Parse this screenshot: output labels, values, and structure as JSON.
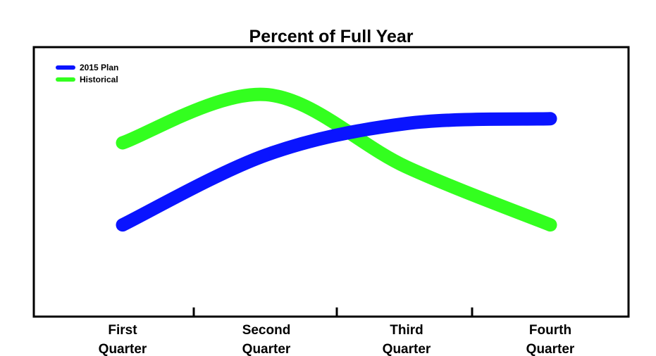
{
  "chart_data": {
    "type": "line",
    "title": "Percent of Full Year",
    "xlabel": "",
    "ylabel": "",
    "categories": [
      [
        "First",
        "Quarter"
      ],
      [
        "Second",
        "Quarter"
      ],
      [
        "Third",
        "Quarter"
      ],
      [
        "Fourth",
        "Quarter"
      ]
    ],
    "series": [
      {
        "name": "2015 Plan",
        "color": "#0a14ff",
        "values": [
          0.38,
          0.67,
          0.8,
          0.82
        ]
      },
      {
        "name": "Historical",
        "color": "#33ff1f",
        "values": [
          0.72,
          0.92,
          0.62,
          0.38
        ]
      }
    ],
    "ylim": [
      0,
      1
    ],
    "y_axis_labels": "none",
    "grid": false,
    "legend": "top-left"
  }
}
